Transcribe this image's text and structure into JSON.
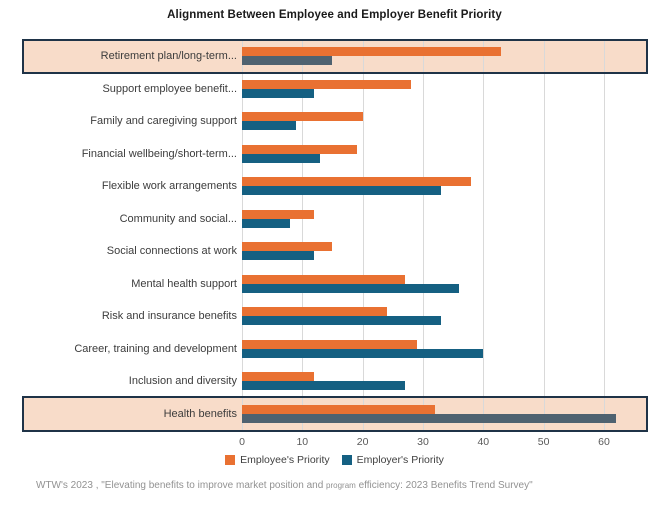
{
  "chart_data": {
    "type": "bar",
    "orientation": "horizontal",
    "title": "Alignment Between Employee and Employer Benefit Priority",
    "categories": [
      "Retirement plan/long-term...",
      "Support employee benefit...",
      "Family and caregiving support",
      "Financial wellbeing/short-term...",
      "Flexible work arrangements",
      "Community and social...",
      "Social connections at work",
      "Mental health support",
      "Risk and insurance benefits",
      "Career, training and development",
      "Inclusion and diversity",
      "Health benefits"
    ],
    "series": [
      {
        "name": "Employee's Priority",
        "color": "#E97132",
        "highlight_color": "#E97132",
        "values": [
          43,
          28,
          20,
          19,
          38,
          12,
          15,
          27,
          24,
          29,
          12,
          32
        ]
      },
      {
        "name": "Employer's Priority",
        "color": "#156082",
        "highlight_color": "#4F6270",
        "values": [
          15,
          12,
          9,
          13,
          33,
          8,
          12,
          36,
          33,
          40,
          27,
          62
        ]
      }
    ],
    "highlighted_rows": [
      0,
      11
    ],
    "highlight_fill": "#F8DCC9",
    "highlight_border": "#1F3347",
    "xticks": [
      0,
      10,
      20,
      30,
      40,
      50,
      60
    ],
    "xlim": [
      0,
      67.3
    ],
    "grid": "vertical",
    "gridline_color": "#D9D9D9",
    "legend_position": "bottom"
  },
  "source": {
    "prefix": "WTW's 2023 , \"Elevating benefits to improve market position and ",
    "small_word": "program",
    "suffix": " efficiency: 2023 Benefits Trend Survey\""
  }
}
